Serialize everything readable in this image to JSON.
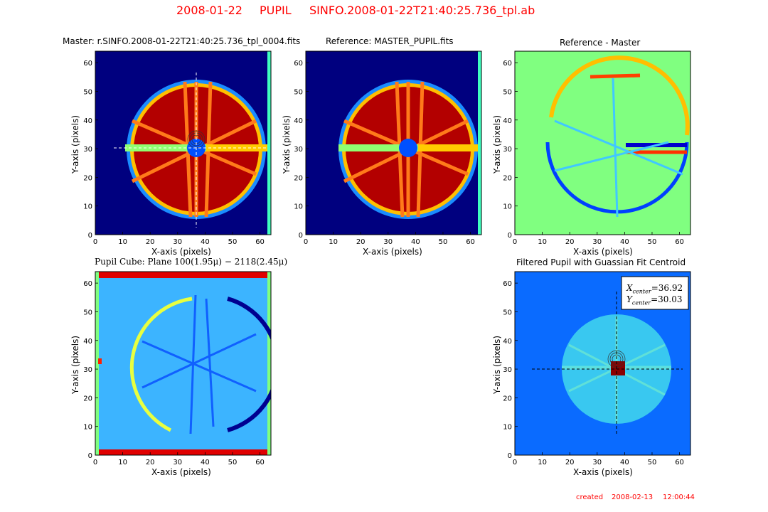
{
  "header": {
    "date": "2008-01-22",
    "mode": "PUPIL",
    "file": "SINFO.2008-01-22T21:40:25.736_tpl.ab"
  },
  "footer": {
    "created_label": "created",
    "date": "2008-02-13",
    "time": "12:00:44"
  },
  "colors": {
    "accent": "#ff0000",
    "bg_low": "#00007f",
    "bg_high": "#7f0000"
  },
  "panels": {
    "p1": {
      "title": "Master: r.SINFO.2008-01-22T21:40:25.736_tpl_0004.fits",
      "xlabel": "X-axis (pixels)",
      "ylabel": "Y-axis (pixels)"
    },
    "p2": {
      "title": "Reference: MASTER_PUPIL.fits",
      "xlabel": "X-axis (pixels)",
      "ylabel": "Y-axis (pixels)"
    },
    "p3": {
      "title": "Reference - Master",
      "xlabel": "X-axis (pixels)",
      "ylabel": "Y-axis (pixels)"
    },
    "p4": {
      "title": "Pupil Cube: Plane 100(1.95μ) − 2118(2.45μ)",
      "xlabel": "X-axis (pixels)",
      "ylabel": "Y-axis (pixels)"
    },
    "p6": {
      "title": "Filtered Pupil with Guassian Fit Centroid",
      "xlabel": "X-axis (pixels)",
      "ylabel": "Y-axis (pixels)",
      "fit_label_x": "X",
      "fit_sub_x": "center",
      "fit_value_x": "=36.92",
      "fit_label_y": "Y",
      "fit_sub_y": "center",
      "fit_value_y": "=30.03"
    }
  },
  "chart_data": [
    {
      "type": "heatmap",
      "title": "Master: r.SINFO.2008-01-22T21:40:25.736_tpl_0004.fits",
      "xlabel": "X-axis (pixels)",
      "ylabel": "Y-axis (pixels)",
      "xlim": [
        0,
        64
      ],
      "ylim": [
        0,
        64
      ],
      "xticks": [
        0,
        10,
        20,
        30,
        40,
        50,
        60
      ],
      "yticks": [
        0,
        10,
        20,
        30,
        40,
        50,
        60
      ],
      "pupil_center": [
        37,
        30
      ],
      "colormap": "jet"
    },
    {
      "type": "heatmap",
      "title": "Reference: MASTER_PUPIL.fits",
      "xlabel": "X-axis (pixels)",
      "ylabel": "Y-axis (pixels)",
      "xlim": [
        0,
        64
      ],
      "ylim": [
        0,
        64
      ],
      "xticks": [
        0,
        10,
        20,
        30,
        40,
        50,
        60
      ],
      "yticks": [
        0,
        10,
        20,
        30,
        40,
        50,
        60
      ],
      "pupil_center": [
        37,
        30
      ],
      "colormap": "jet"
    },
    {
      "type": "heatmap",
      "title": "Reference - Master",
      "xlabel": "X-axis (pixels)",
      "ylabel": "Y-axis (pixels)",
      "xlim": [
        0,
        64
      ],
      "ylim": [
        0,
        64
      ],
      "xticks": [
        0,
        10,
        20,
        30,
        40,
        50,
        60
      ],
      "yticks": [
        0,
        10,
        20,
        30,
        40,
        50,
        60
      ],
      "colormap": "jet"
    },
    {
      "type": "heatmap",
      "title": "Pupil Cube: Plane 100(1.95μ) − 2118(2.45μ)",
      "xlabel": "X-axis (pixels)",
      "ylabel": "Y-axis (pixels)",
      "xlim": [
        0,
        64
      ],
      "ylim": [
        0,
        64
      ],
      "xticks": [
        0,
        10,
        20,
        30,
        40,
        50,
        60
      ],
      "yticks": [
        0,
        10,
        20,
        30,
        40,
        50,
        60
      ],
      "colormap": "jet"
    },
    {
      "type": "heatmap",
      "title": "Filtered Pupil with Guassian Fit Centroid",
      "xlabel": "X-axis (pixels)",
      "ylabel": "Y-axis (pixels)",
      "xlim": [
        0,
        64
      ],
      "ylim": [
        0,
        64
      ],
      "xticks": [
        0,
        10,
        20,
        30,
        40,
        50,
        60
      ],
      "yticks": [
        0,
        10,
        20,
        30,
        40,
        50,
        60
      ],
      "centroid": {
        "x": 36.92,
        "y": 30.03
      },
      "colormap": "jet"
    }
  ]
}
